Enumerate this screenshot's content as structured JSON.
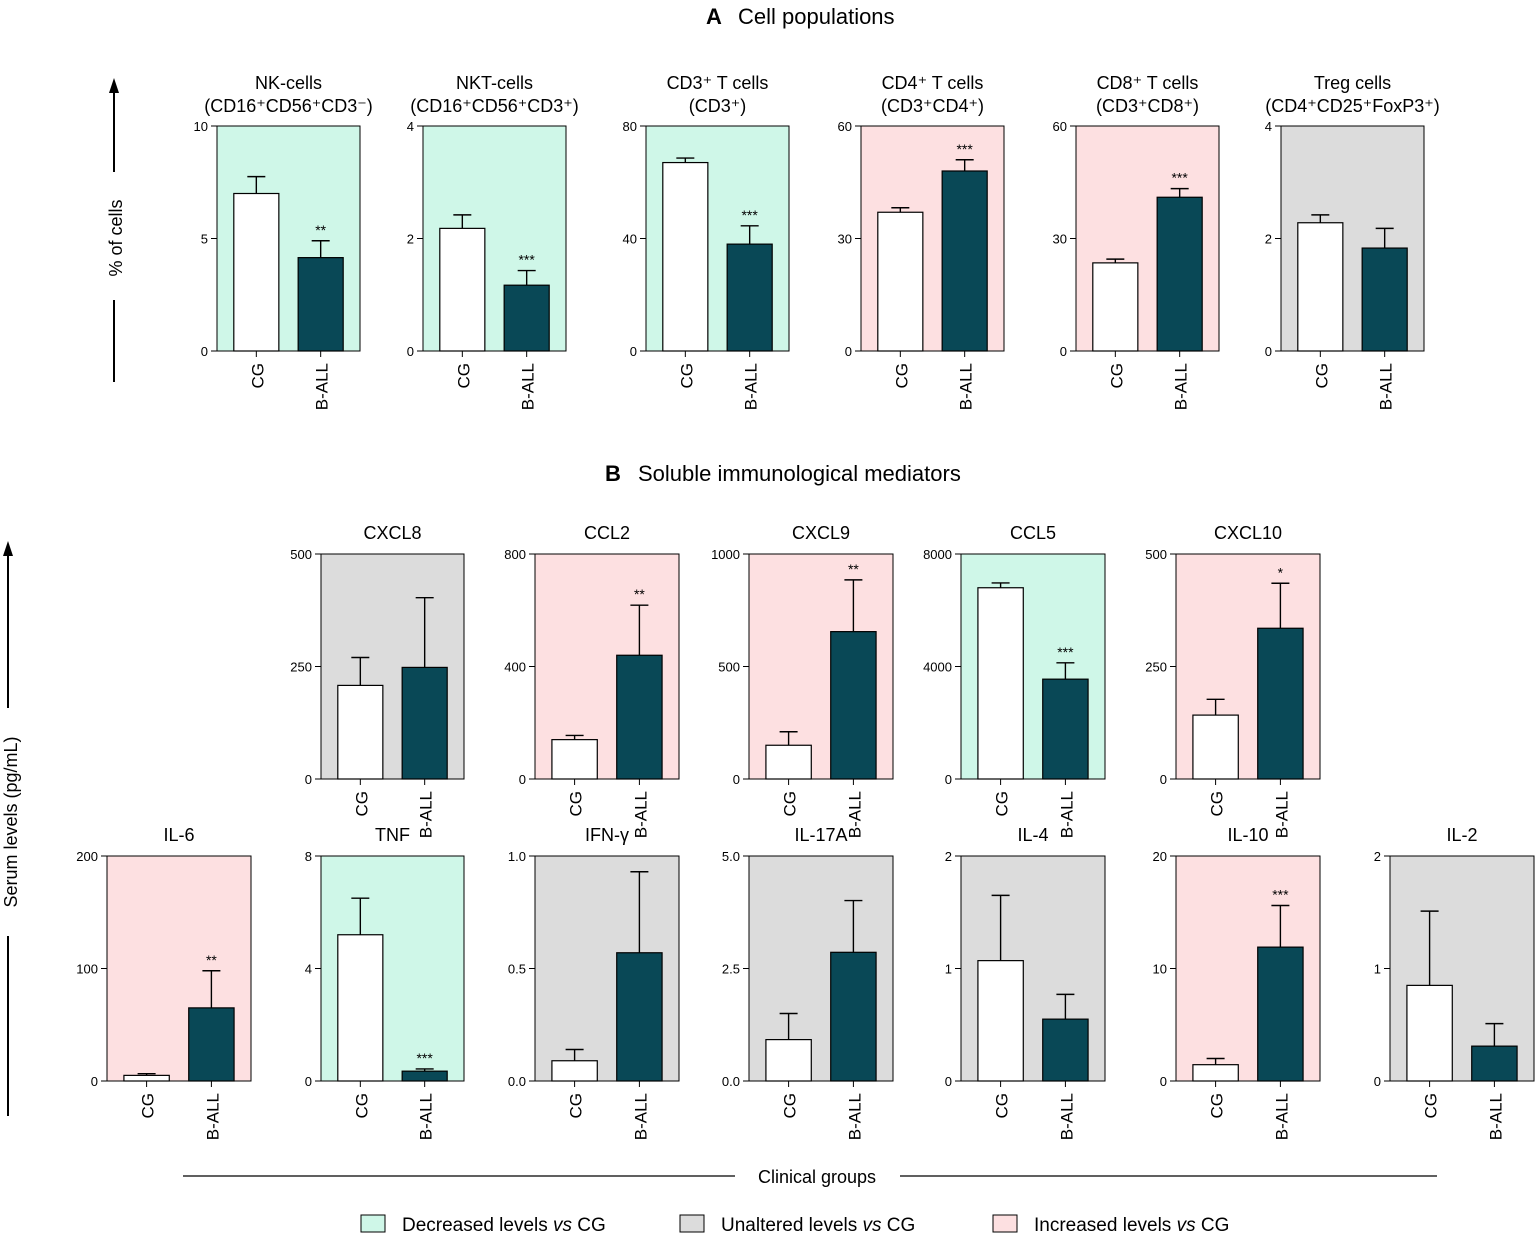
{
  "colors": {
    "decreased": "#cff7e8",
    "unaltered": "#dcdcdc",
    "increased": "#fde0e1",
    "bar_cg": "#ffffff",
    "bar_ball": "#094856",
    "axis": "#000000"
  },
  "section_a": {
    "letter": "A",
    "title": "Cell populations",
    "ylabel": "% of cells"
  },
  "section_b": {
    "letter": "B",
    "title": "Soluble immunological mediators",
    "ylabel": "Serum levels (pg/mL)"
  },
  "footer": {
    "xlabel": "Clinical groups",
    "legend": [
      {
        "status": "decreased",
        "label_pre": "Decreased levels ",
        "label_vs": "vs",
        "label_post": " CG"
      },
      {
        "status": "unaltered",
        "label_pre": "Unaltered levels ",
        "label_vs": "vs",
        "label_post": " CG"
      },
      {
        "status": "increased",
        "label_pre": "Increased levels ",
        "label_vs": "vs",
        "label_post": " CG"
      }
    ]
  },
  "chart_data": [
    {
      "type": "bar",
      "key": "nk",
      "title": "NK-cells",
      "subtitle": "(CD16⁺CD56⁺CD3⁻)",
      "categories": [
        "CG",
        "B-ALL"
      ],
      "values": [
        7.0,
        4.15
      ],
      "errors": [
        0.75,
        0.75
      ],
      "sig": "**",
      "status": "decreased",
      "ylim": [
        0,
        10
      ],
      "yticks": [
        "0",
        "5",
        "10"
      ]
    },
    {
      "type": "bar",
      "key": "nkt",
      "title": "NKT-cells",
      "subtitle": "(CD16⁺CD56⁺CD3⁺)",
      "categories": [
        "CG",
        "B-ALL"
      ],
      "values": [
        2.18,
        1.17
      ],
      "errors": [
        0.24,
        0.26
      ],
      "sig": "***",
      "status": "decreased",
      "ylim": [
        0,
        4
      ],
      "yticks": [
        "0",
        "2",
        "4"
      ]
    },
    {
      "type": "bar",
      "key": "cd3",
      "title": "CD3⁺ T cells",
      "subtitle": "(CD3⁺)",
      "categories": [
        "CG",
        "B-ALL"
      ],
      "values": [
        67,
        38
      ],
      "errors": [
        1.6,
        6.5
      ],
      "sig": "***",
      "status": "decreased",
      "ylim": [
        0,
        80
      ],
      "yticks": [
        "0",
        "40",
        "80"
      ]
    },
    {
      "type": "bar",
      "key": "cd4",
      "title": "CD4⁺ T cells",
      "subtitle": "(CD3⁺CD4⁺)",
      "categories": [
        "CG",
        "B-ALL"
      ],
      "values": [
        37,
        48
      ],
      "errors": [
        1.2,
        3.0
      ],
      "sig": "***",
      "status": "increased",
      "ylim": [
        0,
        60
      ],
      "yticks": [
        "0",
        "30",
        "60"
      ]
    },
    {
      "type": "bar",
      "key": "cd8",
      "title": "CD8⁺ T cells",
      "subtitle": "(CD3⁺CD8⁺)",
      "categories": [
        "CG",
        "B-ALL"
      ],
      "values": [
        23.5,
        41
      ],
      "errors": [
        1.0,
        2.3
      ],
      "sig": "***",
      "status": "increased",
      "ylim": [
        0,
        60
      ],
      "yticks": [
        "0",
        "30",
        "60"
      ]
    },
    {
      "type": "bar",
      "key": "treg",
      "title": "Treg cells",
      "subtitle": "(CD4⁺CD25⁺FoxP3⁺)",
      "categories": [
        "CG",
        "B-ALL"
      ],
      "values": [
        2.28,
        1.83
      ],
      "errors": [
        0.14,
        0.35
      ],
      "sig": "",
      "status": "unaltered",
      "ylim": [
        0,
        4
      ],
      "yticks": [
        "0",
        "2",
        "4"
      ]
    },
    {
      "type": "bar",
      "key": "cxcl8",
      "title": "CXCL8",
      "categories": [
        "CG",
        "B-ALL"
      ],
      "values": [
        208,
        248
      ],
      "errors": [
        62,
        155
      ],
      "sig": "",
      "status": "unaltered",
      "ylim": [
        0,
        500
      ],
      "yticks": [
        "0",
        "250",
        "500"
      ]
    },
    {
      "type": "bar",
      "key": "ccl2",
      "title": "CCL2",
      "categories": [
        "CG",
        "B-ALL"
      ],
      "values": [
        140,
        440
      ],
      "errors": [
        15,
        178
      ],
      "sig": "**",
      "status": "increased",
      "ylim": [
        0,
        800
      ],
      "yticks": [
        "0",
        "400",
        "800"
      ]
    },
    {
      "type": "bar",
      "key": "cxcl9",
      "title": "CXCL9",
      "categories": [
        "CG",
        "B-ALL"
      ],
      "values": [
        150,
        655
      ],
      "errors": [
        60,
        230
      ],
      "sig": "**",
      "status": "increased",
      "ylim": [
        0,
        1000
      ],
      "yticks": [
        "0",
        "500",
        "1000"
      ]
    },
    {
      "type": "bar",
      "key": "ccl5",
      "title": "CCL5",
      "categories": [
        "CG",
        "B-ALL"
      ],
      "values": [
        6800,
        3550
      ],
      "errors": [
        170,
        580
      ],
      "sig": "***",
      "status": "decreased",
      "ylim": [
        0,
        8000
      ],
      "yticks": [
        "0",
        "4000",
        "8000"
      ]
    },
    {
      "type": "bar",
      "key": "cxcl10",
      "title": "CXCL10",
      "categories": [
        "CG",
        "B-ALL"
      ],
      "values": [
        142,
        335
      ],
      "errors": [
        35,
        100
      ],
      "sig": "*",
      "status": "increased",
      "ylim": [
        0,
        500
      ],
      "yticks": [
        "0",
        "250",
        "500"
      ]
    },
    {
      "type": "bar",
      "key": "il6",
      "title": "IL-6",
      "categories": [
        "CG",
        "B-ALL"
      ],
      "values": [
        5,
        65
      ],
      "errors": [
        1.5,
        33
      ],
      "sig": "**",
      "status": "increased",
      "ylim": [
        0,
        200
      ],
      "yticks": [
        "0",
        "100",
        "200"
      ]
    },
    {
      "type": "bar",
      "key": "tnf",
      "title": "TNF",
      "categories": [
        "CG",
        "B-ALL"
      ],
      "values": [
        5.2,
        0.35
      ],
      "errors": [
        1.3,
        0.08
      ],
      "sig": "***",
      "status": "decreased",
      "ylim": [
        0,
        8
      ],
      "yticks": [
        "0",
        "4",
        "8"
      ]
    },
    {
      "type": "bar",
      "key": "ifng",
      "title": "IFN-γ",
      "categories": [
        "CG",
        "B-ALL"
      ],
      "values": [
        0.09,
        0.57
      ],
      "errors": [
        0.05,
        0.36
      ],
      "sig": "",
      "status": "unaltered",
      "ylim": [
        0,
        1.0
      ],
      "yticks": [
        "0.0",
        "0.5",
        "1.0"
      ]
    },
    {
      "type": "bar",
      "key": "il17a",
      "title": "IL-17A",
      "categories": [
        "CG",
        "B-ALL"
      ],
      "values": [
        0.92,
        2.86
      ],
      "errors": [
        0.58,
        1.15
      ],
      "sig": "",
      "status": "unaltered",
      "ylim": [
        0,
        5.0
      ],
      "yticks": [
        "0.0",
        "2.5",
        "5.0"
      ]
    },
    {
      "type": "bar",
      "key": "il4",
      "title": "IL-4",
      "categories": [
        "CG",
        "B-ALL"
      ],
      "values": [
        1.07,
        0.55
      ],
      "errors": [
        0.58,
        0.22
      ],
      "sig": "",
      "status": "unaltered",
      "ylim": [
        0,
        2
      ],
      "yticks": [
        "0",
        "1",
        "2"
      ]
    },
    {
      "type": "bar",
      "key": "il10",
      "title": "IL-10",
      "categories": [
        "CG",
        "B-ALL"
      ],
      "values": [
        1.45,
        11.9
      ],
      "errors": [
        0.55,
        3.7
      ],
      "sig": "***",
      "status": "increased",
      "ylim": [
        0,
        20
      ],
      "yticks": [
        "0",
        "10",
        "20"
      ]
    },
    {
      "type": "bar",
      "key": "il2",
      "title": "IL-2",
      "categories": [
        "CG",
        "B-ALL"
      ],
      "values": [
        0.85,
        0.31
      ],
      "errors": [
        0.66,
        0.2
      ],
      "sig": "",
      "status": "unaltered",
      "ylim": [
        0,
        2
      ],
      "yticks": [
        "0",
        "1",
        "2"
      ]
    }
  ]
}
